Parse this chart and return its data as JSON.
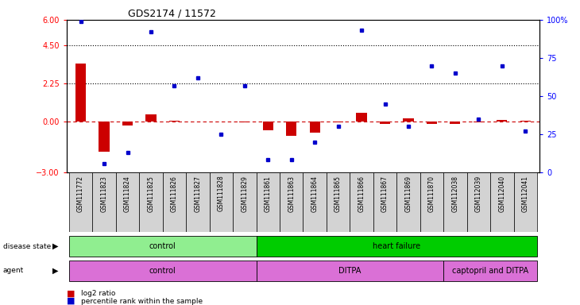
{
  "title": "GDS2174 / 11572",
  "samples": [
    "GSM111772",
    "GSM111823",
    "GSM111824",
    "GSM111825",
    "GSM111826",
    "GSM111827",
    "GSM111828",
    "GSM111829",
    "GSM111861",
    "GSM111863",
    "GSM111864",
    "GSM111865",
    "GSM111866",
    "GSM111867",
    "GSM111869",
    "GSM111870",
    "GSM112038",
    "GSM112039",
    "GSM112040",
    "GSM112041"
  ],
  "log2_ratio": [
    3.4,
    -1.8,
    -0.25,
    0.4,
    0.05,
    0.0,
    0.0,
    -0.05,
    -0.5,
    -0.85,
    -0.65,
    -0.05,
    0.5,
    -0.15,
    0.2,
    -0.15,
    -0.15,
    -0.05,
    0.1,
    0.05
  ],
  "percentile": [
    99.0,
    5.5,
    13.0,
    92.0,
    57.0,
    62.0,
    25.0,
    57.0,
    8.5,
    8.5,
    20.0,
    30.0,
    93.0,
    45.0,
    30.0,
    70.0,
    65.0,
    35.0,
    70.0,
    27.0
  ],
  "left_ylim": [
    -3,
    6
  ],
  "right_ylim": [
    0,
    100
  ],
  "left_yticks": [
    -3,
    0,
    2.25,
    4.5,
    6
  ],
  "right_yticks": [
    0,
    25,
    50,
    75,
    100
  ],
  "hline_values": [
    2.25,
    4.5
  ],
  "bar_color": "#CC0000",
  "dot_color": "#0000CC",
  "dashed_line_color": "#CC0000",
  "ds_groups": [
    {
      "label": "control",
      "start": 0,
      "end": 7,
      "color": "#90EE90"
    },
    {
      "label": "heart failure",
      "start": 8,
      "end": 19,
      "color": "#00CC00"
    }
  ],
  "ag_groups": [
    {
      "label": "control",
      "start": 0,
      "end": 7,
      "color": "#DA70D6"
    },
    {
      "label": "DITPA",
      "start": 8,
      "end": 15,
      "color": "#DA70D6"
    },
    {
      "label": "captopril and DITPA",
      "start": 16,
      "end": 19,
      "color": "#DA70D6"
    }
  ]
}
